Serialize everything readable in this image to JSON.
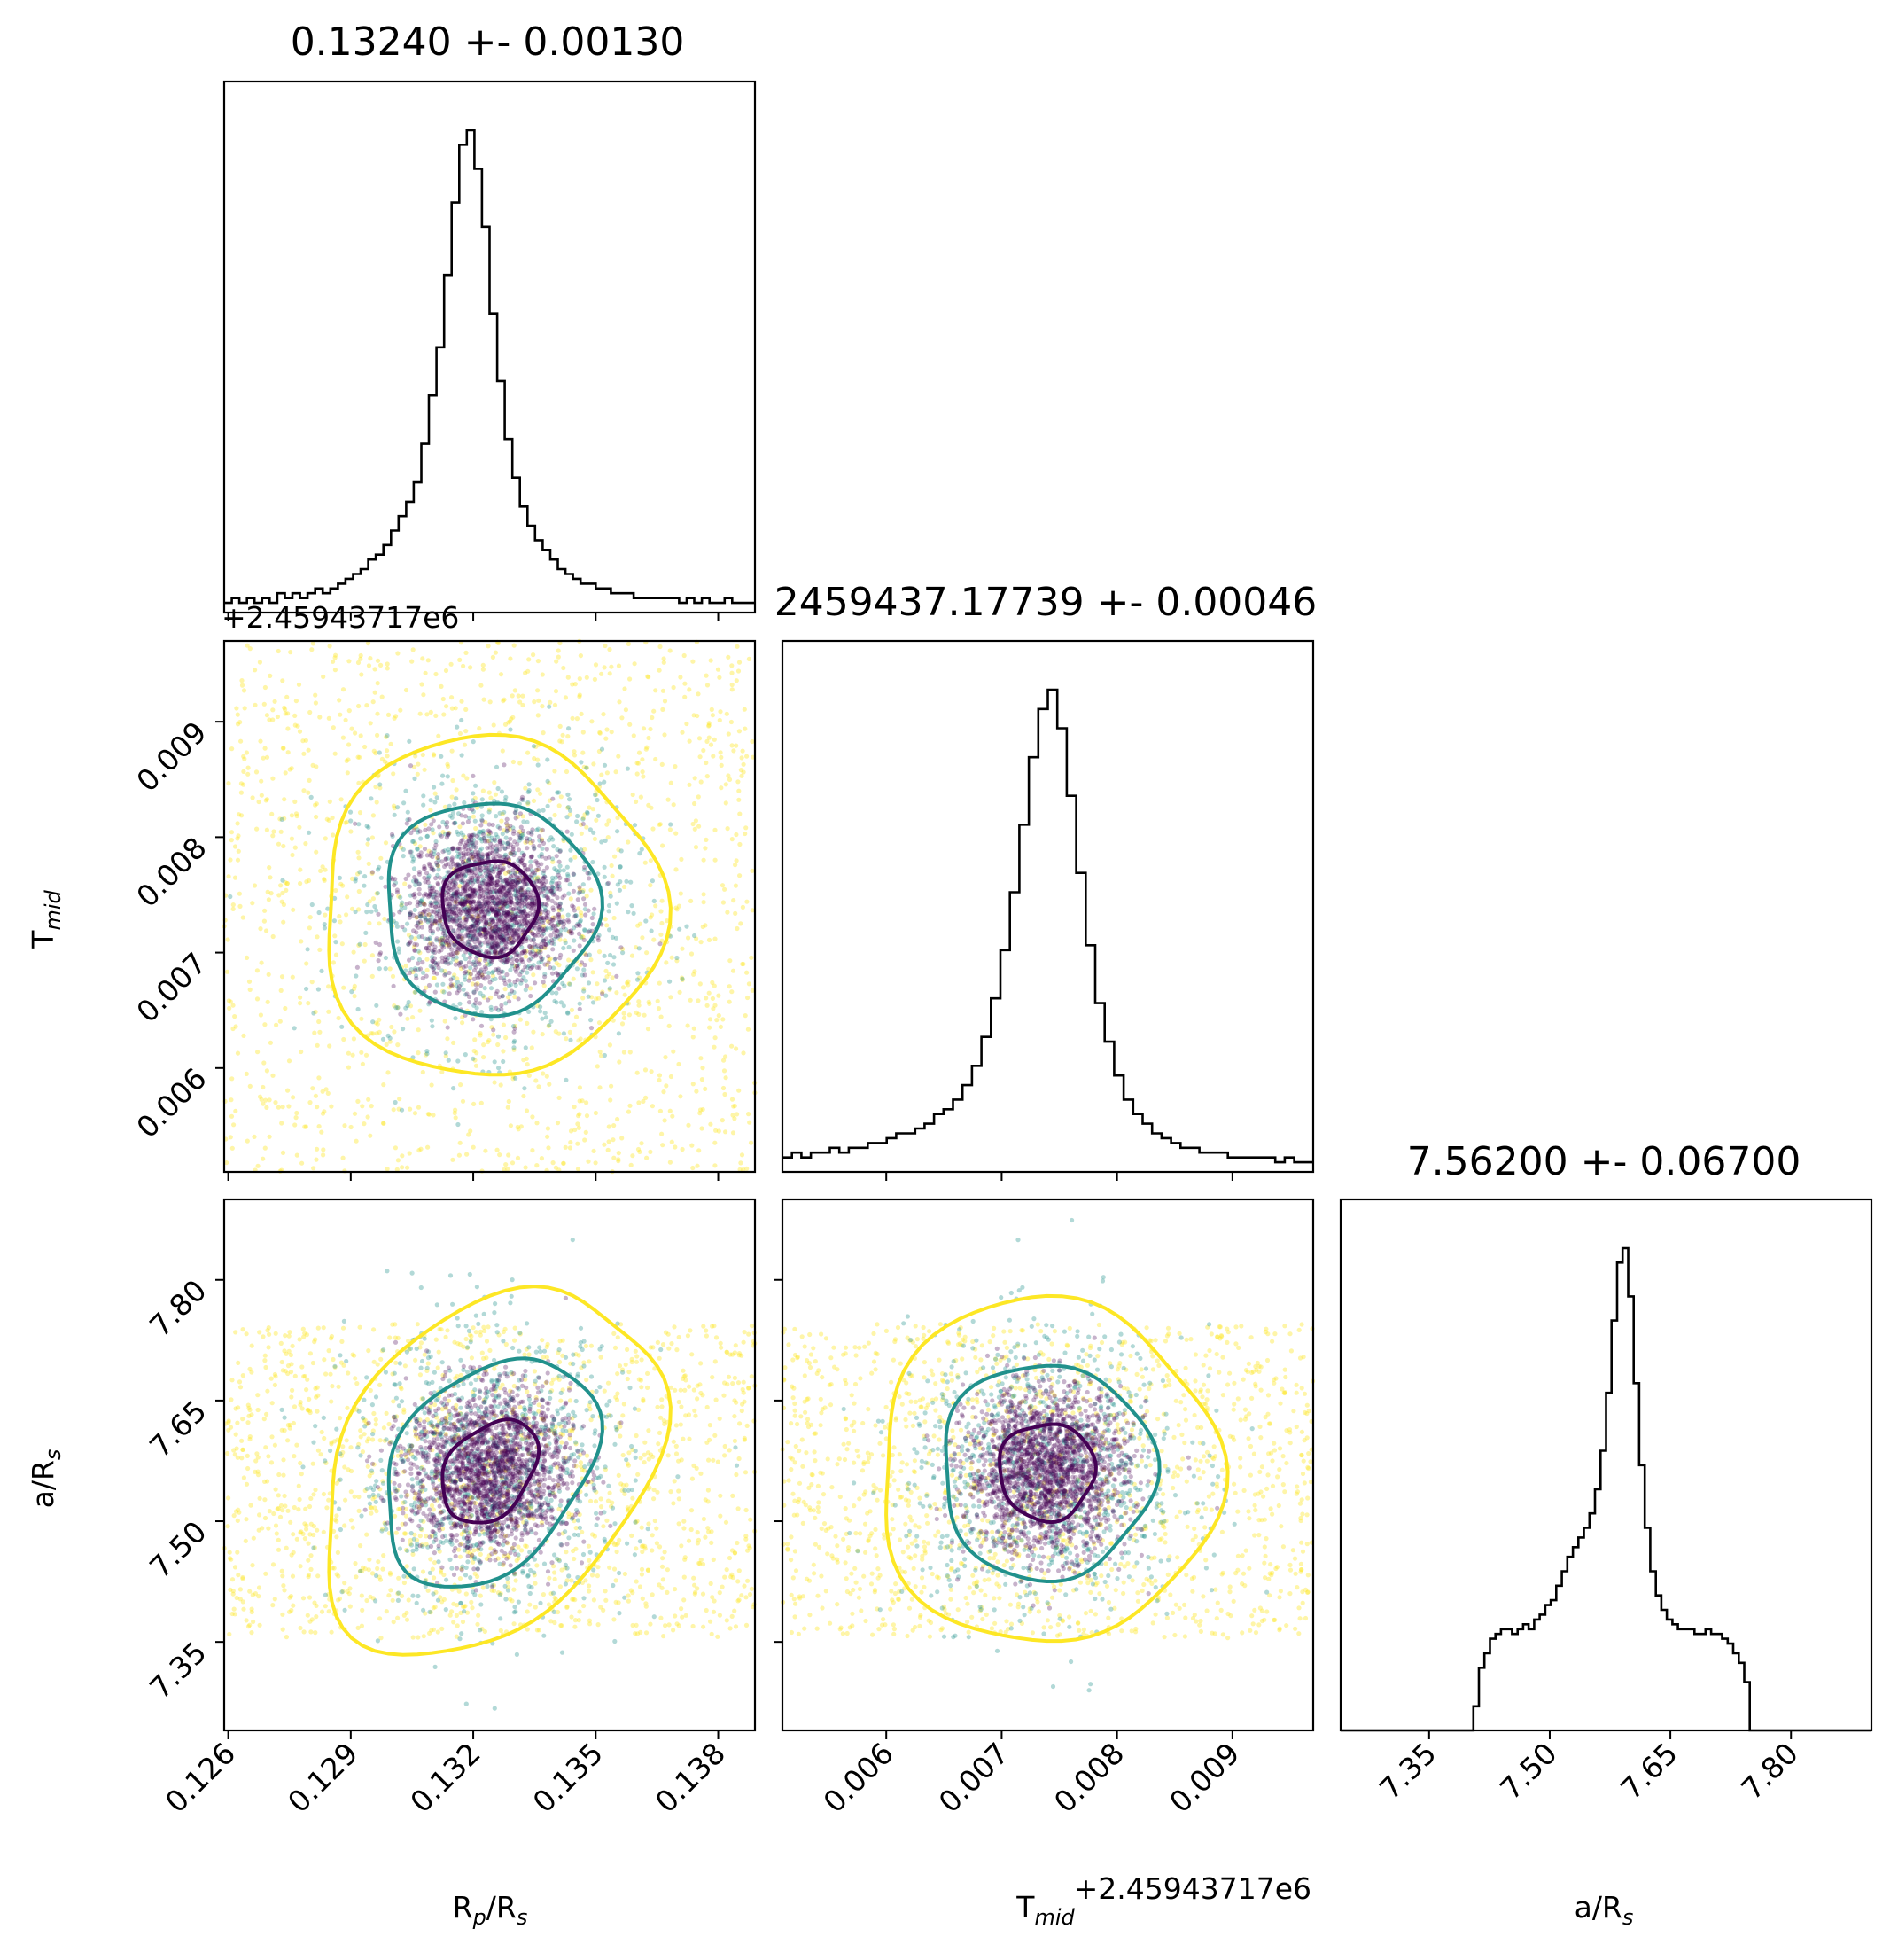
{
  "chart_data": {
    "type": "corner",
    "parameters": [
      {
        "id": "rp",
        "label_main": "R",
        "label_sub": "p",
        "label_mid": "/R",
        "label_sub2": "s"
      },
      {
        "id": "tmid",
        "label_main": "T",
        "label_sub": "mid",
        "label_mid": "",
        "label_sub2": ""
      },
      {
        "id": "ars",
        "label_main": "a/R",
        "label_sub": "s",
        "label_mid": "",
        "label_sub2": ""
      }
    ],
    "titles": [
      "0.13240 +- 0.00130",
      "2459437.17739 +- 0.00046",
      "7.56200 +- 0.06700"
    ],
    "offset_label": "+2.45943717e6",
    "ranges": {
      "rp": [
        0.1259,
        0.1389
      ],
      "tmid": [
        0.0051,
        0.0097
      ],
      "ars": [
        7.24,
        7.9
      ]
    },
    "ticks": {
      "rp": [
        "0.126",
        "0.129",
        "0.132",
        "0.135",
        "0.138"
      ],
      "tmid": [
        "0.006",
        "0.007",
        "0.008",
        "0.009"
      ],
      "ars": [
        "7.35",
        "7.50",
        "7.65",
        "7.80"
      ]
    },
    "estimates": {
      "rp": {
        "mean": 0.1324,
        "sd": 0.0013
      },
      "tmid": {
        "mean": 0.00739,
        "sd": 0.00046
      },
      "ars": {
        "mean": 7.562,
        "sd": 0.067
      }
    },
    "histograms": {
      "rp": [
        0.02,
        0.03,
        0.02,
        0.03,
        0.02,
        0.03,
        0.02,
        0.04,
        0.03,
        0.04,
        0.03,
        0.04,
        0.05,
        0.04,
        0.05,
        0.06,
        0.07,
        0.08,
        0.09,
        0.11,
        0.12,
        0.14,
        0.17,
        0.2,
        0.23,
        0.27,
        0.35,
        0.45,
        0.55,
        0.7,
        0.85,
        0.97,
        1.0,
        0.92,
        0.8,
        0.62,
        0.48,
        0.36,
        0.28,
        0.22,
        0.18,
        0.15,
        0.13,
        0.11,
        0.09,
        0.08,
        0.07,
        0.06,
        0.06,
        0.05,
        0.05,
        0.04,
        0.04,
        0.04,
        0.03,
        0.03,
        0.03,
        0.03,
        0.03,
        0.03,
        0.02,
        0.03,
        0.02,
        0.03,
        0.02,
        0.02,
        0.03,
        0.02,
        0.02,
        0.02
      ],
      "tmid": [
        0.03,
        0.04,
        0.03,
        0.04,
        0.04,
        0.05,
        0.04,
        0.05,
        0.05,
        0.06,
        0.06,
        0.07,
        0.08,
        0.08,
        0.09,
        0.1,
        0.12,
        0.13,
        0.15,
        0.18,
        0.22,
        0.28,
        0.36,
        0.46,
        0.58,
        0.72,
        0.86,
        0.96,
        1.0,
        0.92,
        0.78,
        0.62,
        0.47,
        0.35,
        0.27,
        0.2,
        0.15,
        0.12,
        0.1,
        0.08,
        0.07,
        0.06,
        0.05,
        0.05,
        0.04,
        0.04,
        0.04,
        0.03,
        0.03,
        0.03,
        0.03,
        0.03,
        0.02,
        0.03,
        0.02,
        0.02
      ],
      "ars": [
        0,
        0,
        0,
        0,
        0,
        0,
        0,
        0,
        0,
        0,
        0,
        0,
        0,
        0,
        0,
        0,
        0,
        0,
        0,
        0,
        0,
        0,
        0,
        0,
        0.05,
        0.13,
        0.16,
        0.19,
        0.2,
        0.21,
        0.21,
        0.2,
        0.21,
        0.22,
        0.21,
        0.23,
        0.24,
        0.26,
        0.27,
        0.3,
        0.33,
        0.36,
        0.38,
        0.4,
        0.42,
        0.45,
        0.5,
        0.58,
        0.7,
        0.85,
        0.97,
        1.0,
        0.9,
        0.72,
        0.55,
        0.42,
        0.33,
        0.28,
        0.25,
        0.23,
        0.22,
        0.21,
        0.21,
        0.21,
        0.2,
        0.2,
        0.21,
        0.2,
        0.2,
        0.19,
        0.18,
        0.16,
        0.14,
        0.1,
        0,
        0,
        0,
        0,
        0,
        0,
        0,
        0,
        0,
        0,
        0,
        0,
        0,
        0,
        0,
        0,
        0,
        0,
        0,
        0,
        0,
        0
      ],
      "ars_support": [
        7.35,
        7.74
      ]
    },
    "contour_colors": [
      "#440154",
      "#21918c",
      "#fde725"
    ],
    "colors": {
      "hist": "#000000",
      "frame": "#000000"
    }
  }
}
